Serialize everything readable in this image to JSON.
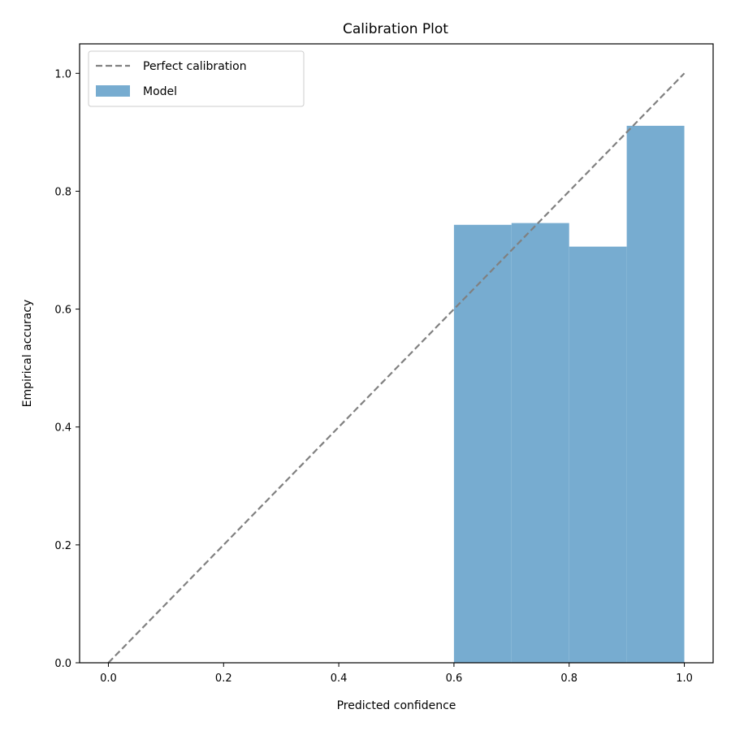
{
  "chart_data": {
    "type": "bar",
    "title": "Calibration Plot",
    "xlabel": "Predicted confidence",
    "ylabel": "Empirical accuracy",
    "xlim": [
      -0.05,
      1.05
    ],
    "ylim": [
      0.0,
      1.05
    ],
    "xticks": [
      "0.0",
      "0.2",
      "0.4",
      "0.6",
      "0.8",
      "1.0"
    ],
    "yticks": [
      "0.0",
      "0.2",
      "0.4",
      "0.6",
      "0.8",
      "1.0"
    ],
    "grid": false,
    "legend_position": "top-left",
    "bins": [
      {
        "x_start": 0.6,
        "x_end": 0.7,
        "value": 0.743
      },
      {
        "x_start": 0.7,
        "x_end": 0.8,
        "value": 0.746
      },
      {
        "x_start": 0.8,
        "x_end": 0.9,
        "value": 0.706
      },
      {
        "x_start": 0.9,
        "x_end": 1.0,
        "value": 0.911
      }
    ],
    "series": [
      {
        "name": "Perfect calibration",
        "kind": "line",
        "style": "dashed",
        "color": "#808080",
        "x": [
          0.0,
          1.0
        ],
        "y": [
          0.0,
          1.0
        ]
      },
      {
        "name": "Model",
        "kind": "bar",
        "color": "#77acd0"
      }
    ]
  }
}
